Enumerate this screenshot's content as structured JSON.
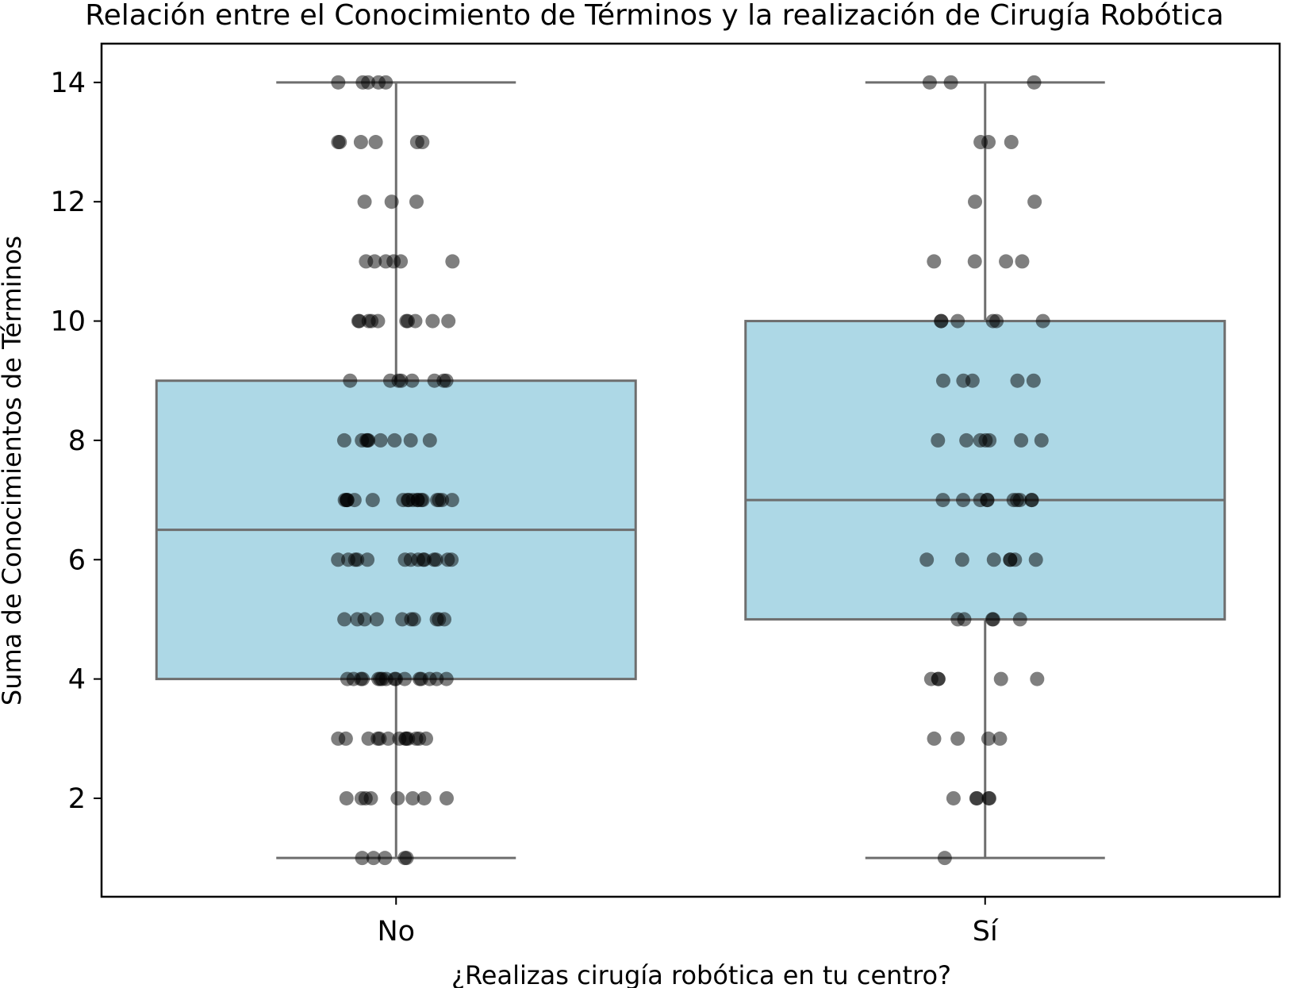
{
  "chart_data": {
    "type": "box",
    "title": "Relación entre el Conocimiento de Términos y la realización de Cirugía Robótica",
    "xlabel": "¿Realizas cirugía robótica en tu centro?",
    "ylabel": "Suma de Conocimientos de Términos",
    "categories": [
      "No",
      "Sí"
    ],
    "ylim": [
      0.35,
      14.65
    ],
    "yticks": [
      2,
      4,
      6,
      8,
      10,
      12,
      14
    ],
    "box_color": "#add8e6",
    "edge_color": "#6e6e6e",
    "point_color": "#000000",
    "boxes": [
      {
        "category": "No",
        "whisker_low": 1,
        "q1": 4,
        "median": 6.5,
        "q3": 9,
        "whisker_high": 14
      },
      {
        "category": "Sí",
        "whisker_low": 1,
        "q1": 5,
        "median": 7,
        "q3": 10,
        "whisker_high": 14
      }
    ],
    "points": [
      {
        "category": "No",
        "values": [
          14,
          14,
          14,
          14,
          14,
          13,
          13,
          13,
          13,
          13,
          13,
          12,
          12,
          12,
          11,
          11,
          11,
          11,
          11,
          11,
          10,
          10,
          10,
          10,
          10,
          10,
          10,
          10,
          10,
          10,
          9,
          9,
          9,
          9,
          9,
          9,
          9,
          9,
          8,
          8,
          8,
          8,
          8,
          8,
          8,
          8,
          8,
          7,
          7,
          7,
          7,
          7,
          7,
          7,
          7,
          7,
          7,
          7,
          7,
          7,
          7,
          7,
          7,
          7,
          7,
          6,
          6,
          6,
          6,
          6,
          6,
          6,
          6,
          6,
          6,
          6,
          6,
          6,
          6,
          5,
          5,
          5,
          5,
          5,
          5,
          5,
          5,
          5,
          5,
          4,
          4,
          4,
          4,
          4,
          4,
          4,
          4,
          4,
          4,
          4,
          4,
          4,
          4,
          4,
          4,
          3,
          3,
          3,
          3,
          3,
          3,
          3,
          3,
          3,
          3,
          3,
          3,
          3,
          2,
          2,
          2,
          2,
          2,
          2,
          2,
          2,
          1,
          1,
          1,
          1,
          1
        ]
      },
      {
        "category": "Sí",
        "values": [
          14,
          14,
          14,
          13,
          13,
          13,
          12,
          12,
          11,
          11,
          11,
          11,
          10,
          10,
          10,
          10,
          10,
          10,
          9,
          9,
          9,
          9,
          9,
          8,
          8,
          8,
          8,
          8,
          8,
          8,
          7,
          7,
          7,
          7,
          7,
          7,
          7,
          7,
          7,
          7,
          6,
          6,
          6,
          6,
          6,
          6,
          6,
          5,
          5,
          5,
          5,
          5,
          4,
          4,
          4,
          4,
          4,
          3,
          3,
          3,
          3,
          2,
          2,
          2,
          2,
          2,
          1
        ]
      }
    ]
  }
}
